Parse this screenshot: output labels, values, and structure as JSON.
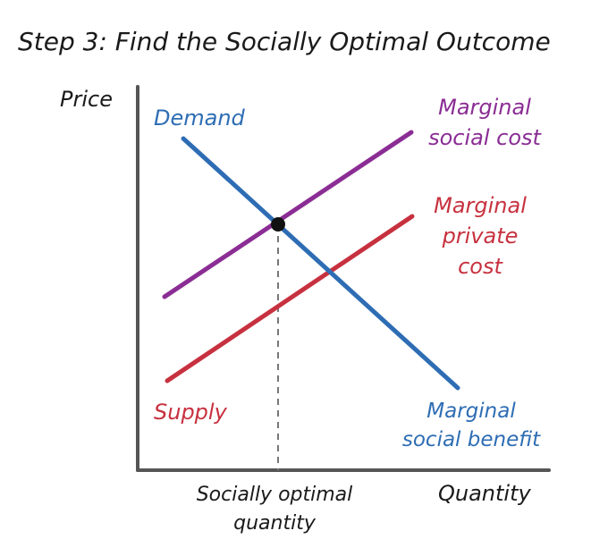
{
  "title": "Step 3: Find the Socially Optimal Outcome",
  "axes": {
    "y_label": "Price",
    "x_label": "Quantity",
    "x_marker_line1": "Socially optimal",
    "x_marker_line2": "quantity"
  },
  "curves": {
    "demand": {
      "label": "Demand",
      "alt_label_line1": "Marginal",
      "alt_label_line2": "social benefit",
      "color": "#2e6db4"
    },
    "msc": {
      "label_line1": "Marginal",
      "label_line2": "social cost",
      "color": "#8a2d94"
    },
    "mpc": {
      "label_line1": "Marginal",
      "label_line2": "private",
      "label_line3": "cost",
      "alt_label": "Supply",
      "color": "#c7313f"
    }
  },
  "colors": {
    "axis": "#555555",
    "text": "#1a1a1a",
    "dashed_line": "#777777",
    "point": "#111111"
  }
}
